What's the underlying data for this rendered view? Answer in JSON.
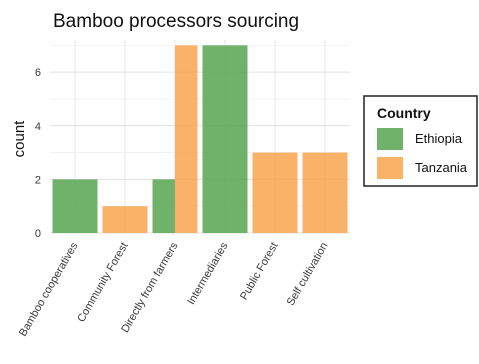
{
  "chart_data": {
    "type": "bar",
    "title": "Bamboo processors sourcing",
    "xlabel": "",
    "ylabel": "count",
    "ylim": [
      0,
      7.2
    ],
    "yticks": [
      0,
      2,
      4,
      6
    ],
    "grid": true,
    "legend_position": "right",
    "legend_title": "Country",
    "categories": [
      "Bamboo cooperatives",
      "Community Forest",
      "Directly from farmers",
      "Intermediaries",
      "Public Forest",
      "Self cultivation"
    ],
    "series": [
      {
        "name": "Ethiopia",
        "color": "#5aa552",
        "values": [
          2,
          0,
          2,
          7,
          0,
          0
        ]
      },
      {
        "name": "Tanzania",
        "color": "#f8a54f",
        "values": [
          0,
          1,
          7,
          0,
          3,
          3
        ]
      }
    ]
  }
}
